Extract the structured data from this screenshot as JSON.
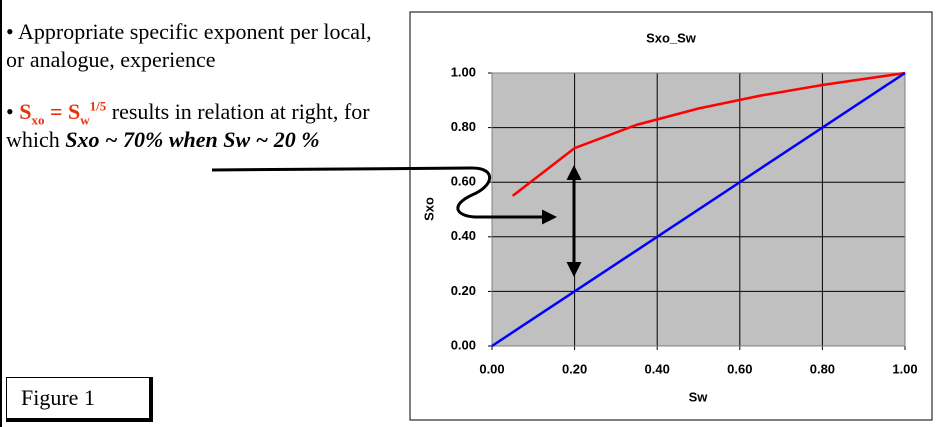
{
  "slide": {
    "bullet": "•",
    "bullets": [
      {
        "text": "Appropriate specific exponent per local, or analogue, experience"
      },
      {
        "parts": [
          "S",
          "xo",
          " = S",
          "w",
          "1/5",
          " results in relation at right, for which ",
          "Sxo ~ 70% when Sw ~ 20 %"
        ]
      }
    ],
    "figure_label": "Figure 1"
  },
  "chart_data": {
    "type": "line",
    "title": "Sxo_Sw",
    "x_label": "Sw",
    "y_label": "Sxo",
    "series": [
      {
        "color": "#ff0000",
        "x": [
          0.05,
          0.2,
          0.35,
          0.5,
          0.65,
          0.8,
          1.0
        ],
        "values": [
          0.55,
          0.725,
          0.81,
          0.87,
          0.917,
          0.956,
          1.0
        ]
      },
      {
        "color": "#0000ff",
        "x": [
          0,
          1
        ],
        "values": [
          0,
          1
        ]
      }
    ],
    "xlim": [
      0,
      1
    ],
    "ylim": [
      0,
      1
    ],
    "xticks": [
      {
        "value": 0,
        "label": "0.00"
      },
      {
        "value": 0.2,
        "label": "0.20"
      },
      {
        "value": 0.4,
        "label": "0.40"
      },
      {
        "value": 0.6,
        "label": "0.60"
      },
      {
        "value": 0.8,
        "label": "0.80"
      },
      {
        "value": 1,
        "label": "1.00"
      }
    ],
    "yticks": [
      {
        "value": 0,
        "label": "0.00"
      },
      {
        "value": 0.2,
        "label": "0.20"
      },
      {
        "value": 0.4,
        "label": "0.40"
      },
      {
        "value": 0.6,
        "label": "0.60"
      },
      {
        "value": 0.8,
        "label": "0.80"
      },
      {
        "value": 1,
        "label": "1.00"
      }
    ],
    "grid": true,
    "plot_background": "#c0c0c0"
  }
}
